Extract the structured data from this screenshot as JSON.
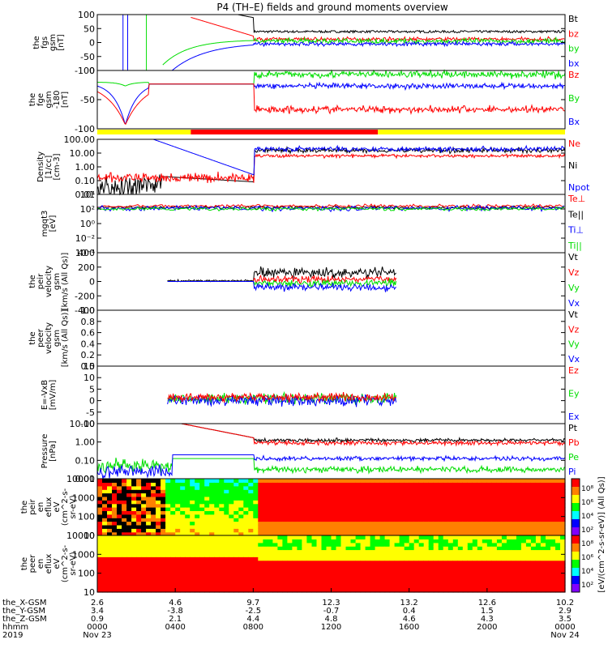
{
  "chart_data": {
    "type": "line",
    "title": "P4 (TH–E) fields and ground moments overview",
    "colors": {
      "black": "#000000",
      "red": "#ff0000",
      "green": "#00dd00",
      "blue": "#0000ff",
      "yellow": "#ffff00",
      "axis": "#000000"
    },
    "panels": [
      {
        "key": "fgs",
        "ylabel": [
          "the",
          "fgs",
          "gsm",
          "[nT]"
        ],
        "scale": "linear",
        "ylim": [
          -100,
          100
        ],
        "ticks": [
          "100",
          "50",
          "0",
          "-50",
          "-100"
        ],
        "series": [
          {
            "name": "Bt",
            "color": "black"
          },
          {
            "name": "bz",
            "color": "red"
          },
          {
            "name": "by",
            "color": "green"
          },
          {
            "name": "bx",
            "color": "blue"
          }
        ]
      },
      {
        "key": "fge",
        "ylabel": [
          "the",
          "fge",
          "gsm",
          "-180",
          "[nT]"
        ],
        "scale": "linear",
        "ylim": [
          -120,
          30
        ],
        "ticks": [
          "0",
          "-50",
          "-100"
        ],
        "series": [
          {
            "name": "Bz",
            "color": "red"
          },
          {
            "name": "By",
            "color": "green"
          },
          {
            "name": "Bx",
            "color": "blue"
          }
        ]
      },
      {
        "key": "density",
        "ylabel": [
          "Density",
          "[1/cc]",
          "[cm-3]"
        ],
        "scale": "log",
        "ylim": [
          0.01,
          100
        ],
        "ticks": [
          "100.00",
          "10.00",
          "1.00",
          "0.10",
          "0.01"
        ],
        "series": [
          {
            "name": "Ne",
            "color": "red"
          },
          {
            "name": "Ni",
            "color": "black"
          },
          {
            "name": "Npot",
            "color": "blue"
          }
        ]
      },
      {
        "key": "temp",
        "ylabel": [
          "mgqt3",
          "[eV]"
        ],
        "scale": "log",
        "ylim": [
          "10^-4",
          "10^4"
        ],
        "ticks": [
          "10⁴",
          "10²",
          "10⁰",
          "10⁻²",
          "10⁻⁴"
        ],
        "series": [
          {
            "name": "Te⊥",
            "color": "red"
          },
          {
            "name": "Te||",
            "color": "black"
          },
          {
            "name": "Ti⊥",
            "color": "blue"
          },
          {
            "name": "Ti||",
            "color": "green"
          }
        ]
      },
      {
        "key": "peir_vel",
        "ylabel": [
          "the",
          "peir",
          "velocity",
          "gsm",
          "[km/s (All Qs)]"
        ],
        "scale": "linear",
        "ylim": [
          -400,
          400
        ],
        "ticks": [
          "400",
          "200",
          "0",
          "-200",
          "-400"
        ],
        "series": [
          {
            "name": "Vt",
            "color": "black"
          },
          {
            "name": "Vz",
            "color": "red"
          },
          {
            "name": "Vy",
            "color": "green"
          },
          {
            "name": "Vx",
            "color": "blue"
          }
        ]
      },
      {
        "key": "peer_vel",
        "ylabel": [
          "the",
          "peer",
          "velocity",
          "gsm",
          "[km/s (All Qs)]"
        ],
        "scale": "linear",
        "ylim": [
          0,
          1
        ],
        "ticks": [
          "1.0",
          "0.8",
          "0.6",
          "0.4",
          "0.2",
          "0.0"
        ],
        "series": [
          {
            "name": "Vt",
            "color": "black"
          },
          {
            "name": "Vz",
            "color": "red"
          },
          {
            "name": "Vy",
            "color": "green"
          },
          {
            "name": "Vx",
            "color": "blue"
          }
        ]
      },
      {
        "key": "efield",
        "ylabel": [
          "E=-VxB",
          "[mV/m]"
        ],
        "scale": "linear",
        "ylim": [
          -10,
          15
        ],
        "ticks": [
          "15",
          "10",
          "5",
          "0",
          "-5",
          "-10"
        ],
        "series": [
          {
            "name": "Ez",
            "color": "red"
          },
          {
            "name": "Ey",
            "color": "green"
          },
          {
            "name": "Ex",
            "color": "blue"
          }
        ]
      },
      {
        "key": "pressure",
        "ylabel": [
          "Pressure",
          "[nPa]"
        ],
        "scale": "log",
        "ylim": [
          0.01,
          10
        ],
        "ticks": [
          "10.00",
          "1.00",
          "0.10",
          "0.01"
        ],
        "series": [
          {
            "name": "Pt",
            "color": "black"
          },
          {
            "name": "Pb",
            "color": "red"
          },
          {
            "name": "Pe",
            "color": "green"
          },
          {
            "name": "Pi",
            "color": "blue"
          }
        ]
      },
      {
        "key": "peir_spec",
        "ylabel": [
          "the",
          "peir",
          "en",
          "eflux",
          "eV",
          "(cm^2-s-",
          "sr-eV)"
        ],
        "scale": "log",
        "ticks": [
          "10000",
          "1000",
          "100",
          "10"
        ],
        "spectrogram": true
      },
      {
        "key": "peer_spec",
        "ylabel": [
          "the",
          "peer",
          "en",
          "eflux",
          "eV",
          "(cm^2-s-",
          "sr-eV)"
        ],
        "scale": "log",
        "ticks": [
          "10000",
          "1000",
          "100",
          "10"
        ],
        "spectrogram": true
      }
    ],
    "colorbar": {
      "ticks": [
        "10⁸",
        "10⁶",
        "10⁴",
        "10²",
        "10⁸",
        "10⁶",
        "10⁴",
        "10²"
      ],
      "label": "[eV/(cm^2-s-sr-eV)] (All Qs)]"
    },
    "quality_bar": {
      "segments": [
        {
          "from": 0.0,
          "to": 0.2,
          "color": "yellow"
        },
        {
          "from": 0.2,
          "to": 0.6,
          "color": "red"
        },
        {
          "from": 0.6,
          "to": 1.0,
          "color": "yellow"
        }
      ]
    },
    "xaxis": {
      "rows": [
        {
          "label": "the_X-GSM",
          "values": [
            "2.6",
            "4.6",
            "9.7",
            "12.3",
            "13.2",
            "12.6",
            "10.2"
          ]
        },
        {
          "label": "the_Y-GSM",
          "values": [
            "3.4",
            "-3.8",
            "-2.5",
            "-0.7",
            "0.4",
            "1.5",
            "2.9"
          ]
        },
        {
          "label": "the_Z-GSM",
          "values": [
            "0.9",
            "2.1",
            "4.4",
            "4.8",
            "4.6",
            "4.3",
            "3.5"
          ]
        },
        {
          "label": "hhmm",
          "values": [
            "0000",
            "0400",
            "0800",
            "1200",
            "1600",
            "2000",
            "0000"
          ]
        },
        {
          "label": "2019",
          "values": [
            "Nov 23",
            "",
            "",
            "",
            "",
            "",
            "Nov 24"
          ]
        }
      ],
      "ticks_hours": [
        0,
        4,
        8,
        12,
        16,
        20,
        24
      ]
    }
  }
}
